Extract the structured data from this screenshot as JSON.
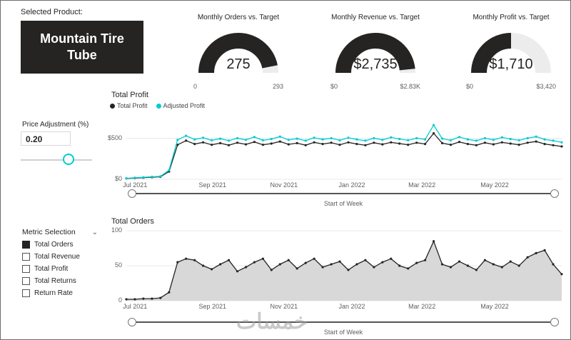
{
  "selected_product": {
    "label": "Selected Product:",
    "value": "Mountain Tire Tube"
  },
  "price_adjustment": {
    "label": "Price Adjustment (%)",
    "value": "0.20"
  },
  "metric_selection": {
    "label": "Metric Selection",
    "options": [
      {
        "label": "Total Orders",
        "checked": true
      },
      {
        "label": "Total Revenue",
        "checked": false
      },
      {
        "label": "Total Profit",
        "checked": false
      },
      {
        "label": "Total Returns",
        "checked": false
      },
      {
        "label": "Return Rate",
        "checked": false
      }
    ]
  },
  "watermark": "خمسات",
  "colors": {
    "dark": "#252423",
    "accent_cyan": "#00ccd2",
    "gauge_track": "#ececec",
    "area_fill": "#d8d8d8",
    "axis_text": "#605e5c",
    "grid": "#e8e8e8"
  },
  "chart_data": [
    {
      "type": "gauge",
      "title": "Monthly Orders vs. Target",
      "value": 275,
      "min": 0,
      "max": 293,
      "display_value": "275",
      "min_label": "0",
      "max_label": "293"
    },
    {
      "type": "gauge",
      "title": "Monthly Revenue vs. Target",
      "value": 2735,
      "min": 0,
      "max": 2830,
      "display_value": "$2,735",
      "min_label": "$0",
      "max_label": "$2.83K"
    },
    {
      "type": "gauge",
      "title": "Monthly Profit vs. Target",
      "value": 1710,
      "min": 0,
      "max": 3420,
      "display_value": "$1,710",
      "min_label": "$0",
      "max_label": "$3,420"
    },
    {
      "type": "line",
      "title": "Total Profit",
      "xlabel": "Start of Week",
      "ylim": [
        0,
        800
      ],
      "grid": true,
      "legend_position": "top-left",
      "y_ticks": [
        {
          "label": "$500",
          "value": 500
        },
        {
          "label": "$0",
          "value": 0
        }
      ],
      "x_ticks": [
        {
          "label": "Jul 2021",
          "pos": 0.02
        },
        {
          "label": "Sep 2021",
          "pos": 0.198
        },
        {
          "label": "Nov 2021",
          "pos": 0.362
        },
        {
          "label": "Jan 2022",
          "pos": 0.518
        },
        {
          "label": "Mar 2022",
          "pos": 0.679
        },
        {
          "label": "May 2022",
          "pos": 0.846
        }
      ],
      "series": [
        {
          "name": "Total Profit",
          "color": "#252423",
          "values": [
            10,
            15,
            20,
            25,
            30,
            95,
            420,
            470,
            430,
            450,
            420,
            440,
            415,
            445,
            425,
            455,
            420,
            435,
            460,
            425,
            440,
            415,
            450,
            430,
            445,
            420,
            450,
            430,
            415,
            445,
            425,
            450,
            435,
            420,
            445,
            430,
            560,
            440,
            420,
            455,
            430,
            415,
            445,
            425,
            450,
            435,
            420,
            445,
            460,
            430,
            415,
            400
          ]
        },
        {
          "name": "Adjusted Profit",
          "color": "#00ccd2",
          "values": [
            12,
            18,
            24,
            30,
            36,
            110,
            480,
            530,
            485,
            505,
            475,
            495,
            470,
            500,
            480,
            515,
            475,
            490,
            520,
            480,
            495,
            470,
            505,
            485,
            500,
            475,
            505,
            485,
            470,
            500,
            480,
            510,
            490,
            475,
            500,
            485,
            660,
            495,
            475,
            515,
            485,
            470,
            500,
            480,
            510,
            490,
            475,
            500,
            520,
            485,
            470,
            450
          ]
        }
      ]
    },
    {
      "type": "area",
      "title": "Total Orders",
      "xlabel": "Start of Week",
      "ylim": [
        0,
        100
      ],
      "grid": true,
      "y_ticks": [
        {
          "label": "100",
          "value": 100
        },
        {
          "label": "50",
          "value": 50
        },
        {
          "label": "0",
          "value": 0
        }
      ],
      "x_ticks": [
        {
          "label": "Jul 2021",
          "pos": 0.02
        },
        {
          "label": "Sep 2021",
          "pos": 0.198
        },
        {
          "label": "Nov 2021",
          "pos": 0.362
        },
        {
          "label": "Jan 2022",
          "pos": 0.518
        },
        {
          "label": "Mar 2022",
          "pos": 0.679
        },
        {
          "label": "May 2022",
          "pos": 0.846
        }
      ],
      "series": [
        {
          "name": "Total Orders",
          "color": "#252423",
          "fill": "#d8d8d8",
          "values": [
            2,
            2,
            3,
            3,
            4,
            12,
            55,
            60,
            58,
            50,
            45,
            52,
            58,
            42,
            48,
            55,
            60,
            44,
            52,
            58,
            46,
            54,
            60,
            48,
            52,
            56,
            44,
            52,
            58,
            48,
            55,
            60,
            50,
            46,
            54,
            58,
            85,
            52,
            48,
            56,
            50,
            44,
            58,
            52,
            48,
            56,
            50,
            62,
            68,
            72,
            52,
            38
          ]
        }
      ]
    }
  ]
}
